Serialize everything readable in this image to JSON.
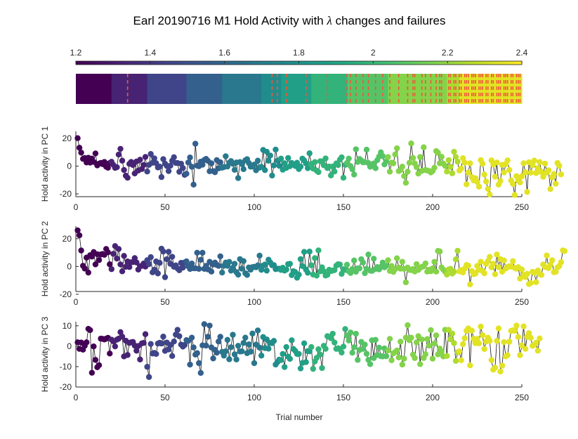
{
  "chart_data": {
    "title_prefix": "Earl 20190716 M1 Hold Activity with ",
    "title_symbol": "λ",
    "title_suffix": " changes and failures",
    "colorbar": {
      "range": [
        1.2,
        2.4
      ],
      "ticks": [
        "1.2",
        "1.4",
        "1.6",
        "1.8",
        "2",
        "2.2",
        "2.4"
      ]
    },
    "lambda_strip": {
      "segments": [
        {
          "from": 0,
          "to": 20,
          "lambda": 1.2
        },
        {
          "from": 20,
          "to": 40,
          "lambda": 1.32
        },
        {
          "from": 40,
          "to": 62,
          "lambda": 1.45
        },
        {
          "from": 62,
          "to": 82,
          "lambda": 1.57
        },
        {
          "from": 82,
          "to": 104,
          "lambda": 1.68
        },
        {
          "from": 104,
          "to": 115,
          "lambda": 1.78
        },
        {
          "from": 115,
          "to": 132,
          "lambda": 1.88
        },
        {
          "from": 132,
          "to": 152,
          "lambda": 1.98
        },
        {
          "from": 152,
          "to": 175,
          "lambda": 2.08
        },
        {
          "from": 175,
          "to": 208,
          "lambda": 2.18
        },
        {
          "from": 208,
          "to": 215,
          "lambda": 2.25
        },
        {
          "from": 215,
          "to": 250,
          "lambda": 2.35
        }
      ],
      "failure_trials": [
        29,
        110,
        113,
        118,
        129,
        141,
        152,
        154,
        157,
        161,
        164,
        168,
        172,
        176,
        181,
        186,
        189,
        190,
        194,
        196,
        199,
        202,
        204,
        205,
        209,
        210,
        212,
        213,
        215,
        216,
        218,
        219,
        220,
        222,
        223,
        224,
        226,
        227,
        228,
        230,
        231,
        233,
        234,
        236,
        237,
        238,
        240,
        241,
        242,
        244,
        245,
        247,
        248,
        249
      ]
    },
    "xlabel": "Trial number",
    "xlim": [
      0,
      250
    ],
    "xticks": [
      0,
      50,
      100,
      150,
      200,
      250
    ],
    "panels": [
      {
        "ylabel": "Hold activity in PC 1",
        "ylim": [
          -22,
          25
        ],
        "yticks": [
          -20,
          0,
          20
        ],
        "values": [
          20.1,
          13.2,
          9.7,
          5.2,
          5.8,
          2.6,
          6.0,
          2.5,
          5.4,
          3.0,
          9.1,
          0.5,
          1.8,
          2.3,
          1.4,
          3.0,
          -0.5,
          -1.2,
          2.2,
          3.1,
          0.9,
          -1.3,
          -0.8,
          8.3,
          12.4,
          3.9,
          -2.8,
          -6.9,
          -8.4,
          1.6,
          3.0,
          0.8,
          -5.3,
          3.3,
          -3.2,
          4.6,
          -2.1,
          0.8,
          6.6,
          -3.9,
          0.9,
          8.7,
          2.4,
          5.6,
          2.1,
          -1.0,
          -0.4,
          -7.9,
          5.0,
          1.8,
          0.1,
          -3.6,
          0.3,
          3.9,
          6.4,
          2.3,
          2.2,
          -4.1,
          1.7,
          -1.4,
          -6.3,
          -5.5,
          2.6,
          6.2,
          -0.5,
          -13.3,
          16.1,
          0.3,
          -0.1,
          3.2,
          1.0,
          4.4,
          5.2,
          3.8,
          -3.7,
          2.0,
          -3.6,
          -4.4,
          4.3,
          -1.6,
          2.7,
          -1.2,
          -0.7,
          7.1,
          -0.3,
          2.4,
          3.6,
          1.6,
          -2.7,
          2.6,
          -8.6,
          2.9,
          1.5,
          -2.2,
          4.2,
          5.0,
          2.2,
          -0.4,
          -0.3,
          1.1,
          -3.0,
          3.9,
          -1.1,
          -0.5,
          11.6,
          -2.9,
          10.3,
          3.9,
          7.6,
          -6.8,
          0.5,
          11.9,
          3.9,
          0.2,
          5.4,
          -2.6,
          2.0,
          -1.3,
          5.8,
          -0.1,
          2.3,
          1.0,
          0.1,
          2.4,
          -2.1,
          -0.4,
          5.4,
          4.1,
          1.9,
          -1.5,
          9.2,
          1.6,
          -1.8,
          2.9,
          -3.3,
          -4.3,
          3.5,
          3.3,
          0.6,
          5.5,
          -1.4,
          -0.3,
          -6.7,
          -0.3,
          -3.9,
          1.9,
          0.7,
          4.6,
          6.3,
          -8.4,
          0.9,
          2.3,
          5.4,
          0.0,
          -2.3,
          -6.1,
          12.1,
          3.0,
          5.1,
          4.1,
          2.7,
          2.9,
          11.8,
          2.2,
          -0.5,
          0.1,
          1.9,
          -1.5,
          4.3,
          6.9,
          9.9,
          7.2,
          1.2,
          3.5,
          6.5,
          -4.0,
          2.5,
          2.0,
          8.4,
          12.8,
          -3.6,
          -2.8,
          -0.4,
          -7.2,
          -12.0,
          -4.0,
          2.4,
          16.3,
          5.8,
          1.9,
          -0.8,
          -5.4,
          6.5,
          -3.4,
          13.5,
          -2.8,
          -3.2,
          -3.5,
          -4.6,
          -3.5,
          -1.2,
          10.8,
          9.7,
          2.0,
          6.7,
          1.8,
          0.2,
          -3.9,
          4.3,
          -0.5,
          -5.2,
          10.3,
          6.6,
          3.2,
          -3.2,
          -1.7,
          5.7,
          2.5,
          -13.1,
          -4.6,
          2.0,
          -7.9,
          -10.3,
          -8.8,
          -11.4,
          -14.8,
          4.3,
          1.7,
          -6.1,
          -11.1,
          -16.4,
          -20.4,
          4.1,
          1.1,
          -7.6,
          2.6,
          -13.3,
          -10.7,
          0.9,
          -4.6,
          1.4,
          4.1,
          -2.8,
          -10.3,
          -12.8,
          -20.8,
          -7.2,
          -10.1,
          -11.7,
          -7.4,
          2.0,
          -4.5,
          -18.6,
          2.8,
          -4.7,
          0.6,
          4.0,
          -5.0,
          -1.5,
          2.9,
          -4.3,
          -7.7,
          1.8,
          -4.7,
          -3.0,
          -16.5,
          -8.1,
          -5.7,
          -12.7,
          2.2,
          0.2,
          -6.0
        ]
      },
      {
        "ylabel": "Hold activity in PC 2",
        "ylim": [
          -18,
          29
        ],
        "yticks": [
          -20,
          0,
          20
        ],
        "values": [
          26.0,
          22.4,
          11.5,
          0.5,
          -1.5,
          6.4,
          -4.4,
          8.1,
          7.1,
          10.4,
          1.5,
          8.8,
          4.6,
          8.6,
          9.0,
          8.4,
          12.6,
          10.2,
          1.6,
          -1.9,
          9.1,
          14.7,
          5.7,
          12.6,
          1.5,
          -3.5,
          7.6,
          -0.2,
          3.6,
          -0.4,
          3.0,
          3.2,
          6.0,
          2.9,
          -2.2,
          0.2,
          0.4,
          2.1,
          -0.1,
          4.5,
          1.7,
          6.7,
          -4.2,
          -2.3,
          3.6,
          -5.0,
          2.6,
          12.8,
          10.8,
          -7.7,
          5.2,
          10.6,
          1.9,
          7.0,
          -0.2,
          0.8,
          -1.4,
          -2.7,
          2.6,
          -0.8,
          2.9,
          3.7,
          0.2,
          -1.8,
          2.1,
          -1.3,
          -1.3,
          9.9,
          -1.7,
          4.8,
          9.9,
          -1.7,
          0.5,
          -2.1,
          3.4,
          -3.7,
          1.4,
          2.8,
          1.1,
          0.4,
          7.3,
          -4.4,
          0.5,
          2.8,
          0.5,
          3.3,
          -3.0,
          -0.9,
          1.9,
          -4.1,
          -5.9,
          5.3,
          -1.6,
          3.9,
          -4.9,
          -6.1,
          -0.7,
          -2.3,
          -0.5,
          -0.2,
          -0.6,
          0.8,
          7.8,
          -2.4,
          0.6,
          1.4,
          -3.0,
          4.9,
          2.9,
          0.9,
          1.0,
          -1.9,
          -1.6,
          -1.6,
          -2.5,
          -0.9,
          -3.0,
          -2.2,
          1.7,
          1.9,
          -6.2,
          -3.4,
          -4.1,
          -8.1,
          -5.9,
          5.3,
          0.3,
          10.5,
          -2.2,
          -4.5,
          10.7,
          0.9,
          -5.8,
          6.0,
          -6.6,
          11.6,
          -3.5,
          -0.6,
          -3.5,
          -6.5,
          -6.0,
          -2.4,
          -3.3,
          -2.9,
          -2.6,
          0.6,
          1.6,
          1.4,
          -5.3,
          -2.0,
          -2.5,
          1.3,
          -3.4,
          -4.7,
          -1.8,
          4.3,
          -3.8,
          -1.3,
          -1.4,
          5.2,
          2.8,
          -4.8,
          -1.6,
          8.6,
          -3.0,
          -3.2,
          5.6,
          -1.8,
          -0.4,
          -2.1,
          -0.3,
          2.8,
          -0.6,
          0.5,
          4.5,
          -3.2,
          0.4,
          -3.9,
          -1.9,
          5.9,
          -0.8,
          -1.6,
          3.4,
          -1.7,
          -11.4,
          -0.8,
          -2.5,
          -2.6,
          -1.8,
          -3.6,
          1.7,
          -2.5,
          -0.9,
          -0.3,
          0.1,
          2.2,
          -3.7,
          -2.4,
          -3.4,
          -1.4,
          3.3,
          -3.7,
          11.2,
          10.8,
          -0.7,
          -2.3,
          -3.8,
          -5.8,
          -2.1,
          -1.7,
          -5.1,
          -3.8,
          5.1,
          11.3,
          -3.5,
          -2.6,
          -4.3,
          -1.5,
          1.1,
          0.6,
          -12.9,
          -3.3,
          -5.6,
          -5.1,
          0.4,
          -2.4,
          3.4,
          -3.2,
          -4.9,
          1.9,
          3.8,
          6.9,
          -0.6,
          1.9,
          -5.6,
          8.6,
          -0.5,
          5.3,
          -3.8,
          4.3,
          -1.5,
          -0.4,
          0.2,
          -0.1,
          3.8,
          -1.1,
          -1.6,
          -0.5,
          -8.7,
          -2.1,
          -6.0,
          -7.6,
          -5.3,
          -12.6,
          -11.9,
          -3.8,
          -4.6,
          -11.3,
          -2.9,
          -5.5,
          -6.1,
          1.4,
          -0.4,
          7.9,
          -1.2,
          1.1,
          4.5,
          -4.1,
          -3.9,
          -0.7,
          0.3,
          3.1,
          11.6,
          11.1
        ]
      },
      {
        "ylabel": "Hold activity in PC 3",
        "ylim": [
          -20,
          12
        ],
        "yticks": [
          -20,
          -10,
          0,
          10
        ],
        "values": [
          1.9,
          -1.3,
          1.8,
          -1.7,
          0.2,
          1.9,
          8.5,
          7.9,
          -13.0,
          -0.1,
          -6.7,
          -10.3,
          -9.3,
          3.7,
          3.6,
          3.3,
          3.7,
          4.1,
          -3.6,
          3.2,
          2.4,
          -0.1,
          3.2,
          3.7,
          6.9,
          4.7,
          -5.0,
          2.7,
          -4.3,
          1.6,
          1.9,
          2.1,
          0.3,
          -2.2,
          0.1,
          -6.5,
          1.4,
          1.6,
          5.9,
          -10.1,
          -15.1,
          1.1,
          -3.6,
          -3.3,
          -3.8,
          1.3,
          1.7,
          1.3,
          4.7,
          -2.3,
          1.8,
          -1.6,
          0.6,
          -4.8,
          2.3,
          5.7,
          8.0,
          4.9,
          0.8,
          -0.2,
          0.6,
          3.0,
          2.6,
          -9.0,
          4.2,
          -0.6,
          -4.1,
          -3.4,
          -8.3,
          -13.1,
          0.4,
          10.8,
          0.3,
          4.6,
          10.1,
          -0.6,
          -6.0,
          -1.8,
          -3.2,
          2.3,
          4.6,
          -2.8,
          -4.6,
          -2.5,
          3.1,
          -6.4,
          -0.5,
          5.6,
          -4.0,
          -6.5,
          0.2,
          -2.6,
          -2.5,
          1.6,
          4.2,
          -3.4,
          0.9,
          -2.7,
          6.2,
          -8.3,
          0.8,
          7.7,
          -0.7,
          -4.6,
          4.5,
          -0.9,
          3.3,
          -1.2,
          1.6,
          1.5,
          2.6,
          -9.0,
          -7.8,
          -6.6,
          -6.8,
          -3.8,
          -10.2,
          -0.4,
          -5.1,
          -6.2,
          2.9,
          -1.4,
          -2.3,
          -3.8,
          -3.8,
          -10.9,
          -8.2,
          1.4,
          -7.8,
          -2.4,
          -2.5,
          -0.4,
          -11.1,
          -7.5,
          -5.7,
          -1.5,
          -4.1,
          -10.7,
          0.2,
          -1.3,
          4.9,
          4.6,
          3.9,
          6.1,
          1.8,
          -1.3,
          -1.0,
          -1.5,
          -3.1,
          -0.2,
          8.4,
          5.2,
          2.8,
          6.7,
          -3.2,
          -0.5,
          6.1,
          -6.7,
          -1.9,
          2.1,
          -1.3,
          0.8,
          -3.7,
          -6.7,
          -8.8,
          2.9,
          -5.8,
          3.1,
          -4.3,
          -0.7,
          -4.9,
          -5.0,
          -1.1,
          -4.9,
          -2.1,
          3.6,
          -6.9,
          -3.5,
          -2.9,
          -2.1,
          -5.5,
          2.2,
          -9.0,
          -6.1,
          4.2,
          10.3,
          2.9,
          4.2,
          -4.1,
          -5.8,
          1.9,
          4.9,
          -8.8,
          3.3,
          -5.8,
          -3.9,
          3.5,
          0.3,
          7.9,
          -6.1,
          1.3,
          5.3,
          -4.0,
          -1.2,
          -2.8,
          -5.0,
          8.0,
          -4.8,
          8.0,
          3.4,
          6.2,
          1.5,
          -7.2,
          -3.0,
          -2.5,
          -6.9,
          1.0,
          3.9,
          7.6,
          8.7,
          -9.4,
          7.6,
          3.6,
          1.5,
          3.6,
          1.4,
          9.6,
          5.4,
          -1.4,
          2.3,
          4.2,
          2.6,
          -6.8,
          -11.5,
          -10.5,
          2.6,
          8.7,
          -12.4,
          -9.5,
          2.0,
          -5.0,
          -4.4,
          2.2,
          7.5,
          7.8,
          7.5,
          10.1,
          4.5,
          -4.4,
          0.4,
          9.7,
          -1.3,
          4.7,
          6.4,
          4.1,
          0.2,
          0.6,
          1.7,
          -2.2,
          3.8
        ]
      }
    ]
  }
}
